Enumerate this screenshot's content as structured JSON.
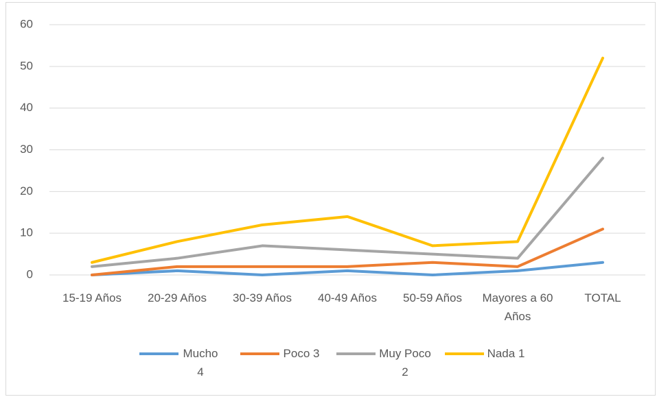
{
  "chart_data": {
    "type": "line",
    "categories": [
      "15-19 Años",
      "20-29 Años",
      "30-39 Años",
      "40-49 Años",
      "50-59 Años",
      "Mayores a 60 Años",
      "TOTAL"
    ],
    "series": [
      {
        "name": "Mucho 4",
        "color": "#5b9bd5",
        "values": [
          0,
          1,
          0,
          1,
          0,
          1,
          3
        ]
      },
      {
        "name": "Poco 3",
        "color": "#ed7d31",
        "values": [
          0,
          2,
          2,
          2,
          3,
          2,
          11
        ]
      },
      {
        "name": "Muy Poco 2",
        "color": "#a5a5a5",
        "values": [
          2,
          4,
          7,
          6,
          5,
          4,
          28
        ]
      },
      {
        "name": "Nada 1",
        "color": "#ffc000",
        "values": [
          3,
          8,
          12,
          14,
          7,
          8,
          52
        ]
      }
    ],
    "ylim": [
      0,
      60
    ],
    "yticks": [
      0,
      10,
      20,
      30,
      40,
      50,
      60
    ],
    "grid": true,
    "legend": "bottom"
  }
}
